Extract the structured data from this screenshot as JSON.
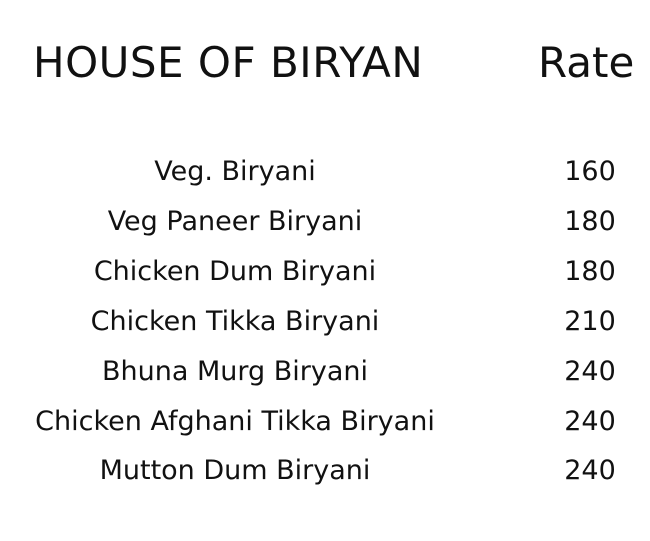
{
  "header": {
    "title": "HOUSE OF BIRYAN",
    "rate_label": "Rate"
  },
  "menu": [
    {
      "name": "Veg. Biryani",
      "price": "160"
    },
    {
      "name": "Veg Paneer Biryani",
      "price": "180"
    },
    {
      "name": "Chicken Dum Biryani",
      "price": "180"
    },
    {
      "name": "Chicken Tikka Biryani",
      "price": "210"
    },
    {
      "name": "Bhuna Murg Biryani",
      "price": "240"
    },
    {
      "name": "Chicken Afghani Tikka Biryani",
      "price": "240"
    },
    {
      "name": "Mutton Dum Biryani",
      "price": "240"
    }
  ]
}
